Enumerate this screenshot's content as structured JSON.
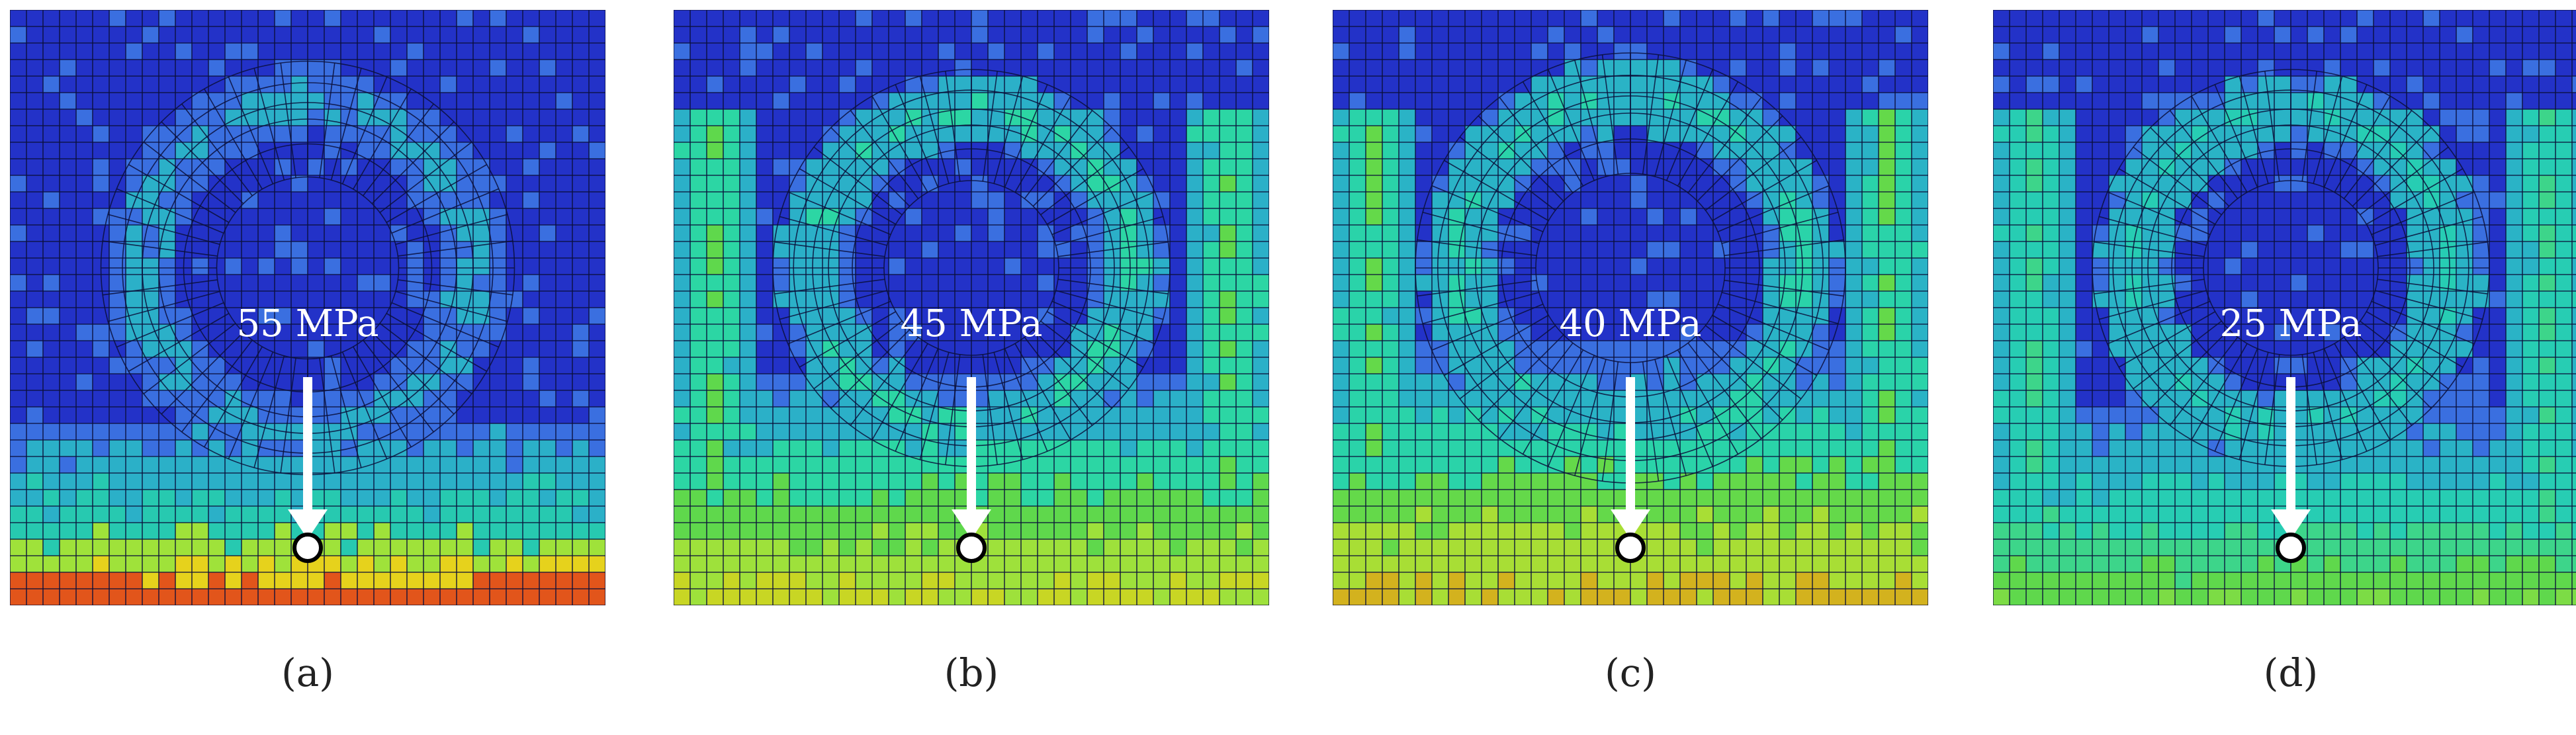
{
  "panels": [
    {
      "label": "55 MPa",
      "caption": "(a)",
      "colors": [
        "#2332c8",
        "#3a6fe0",
        "#2bb0c8",
        "#27c9b0",
        "#9fe23a",
        "#e6d21c",
        "#e2551b"
      ]
    },
    {
      "label": "45 MPa",
      "caption": "(b)",
      "colors": [
        "#2332c8",
        "#3a6fe0",
        "#2bb0c8",
        "#2cd6a4",
        "#5fd84c",
        "#9ee13b",
        "#c8d624"
      ]
    },
    {
      "label": "40 MPa",
      "caption": "(c)",
      "colors": [
        "#2332c8",
        "#3a6fe0",
        "#2ab3c6",
        "#2ad3a9",
        "#64d94a",
        "#a8de35",
        "#d3b21e"
      ]
    },
    {
      "label": "25 MPa",
      "caption": "(d)",
      "colors": [
        "#2332c8",
        "#3a6fe0",
        "#2ab3c6",
        "#27cdb3",
        "#3dd58a",
        "#5fd84c",
        "#7cdc45"
      ]
    }
  ]
}
